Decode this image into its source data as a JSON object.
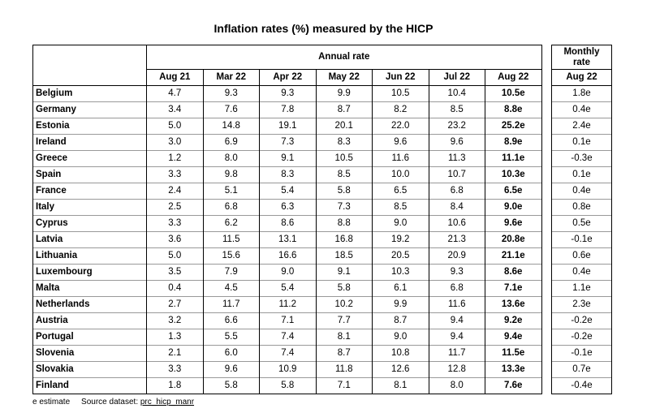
{
  "title": "Inflation rates (%) measured by the HICP",
  "annual_header": "Annual rate",
  "monthly_header_line1": "Monthly",
  "monthly_header_line2": "rate",
  "columns": [
    "Aug 21",
    "Mar 22",
    "Apr 22",
    "May 22",
    "Jun 22",
    "Jul 22",
    "Aug 22"
  ],
  "monthly_column": "Aug 22",
  "rows": [
    {
      "country": "Belgium",
      "values": [
        "4.7",
        "9.3",
        "9.3",
        "9.9",
        "10.5",
        "10.4",
        "10.5e"
      ],
      "monthly": "1.8e"
    },
    {
      "country": "Germany",
      "values": [
        "3.4",
        "7.6",
        "7.8",
        "8.7",
        "8.2",
        "8.5",
        "8.8e"
      ],
      "monthly": "0.4e"
    },
    {
      "country": "Estonia",
      "values": [
        "5.0",
        "14.8",
        "19.1",
        "20.1",
        "22.0",
        "23.2",
        "25.2e"
      ],
      "monthly": "2.4e"
    },
    {
      "country": "Ireland",
      "values": [
        "3.0",
        "6.9",
        "7.3",
        "8.3",
        "9.6",
        "9.6",
        "8.9e"
      ],
      "monthly": "0.1e"
    },
    {
      "country": "Greece",
      "values": [
        "1.2",
        "8.0",
        "9.1",
        "10.5",
        "11.6",
        "11.3",
        "11.1e"
      ],
      "monthly": "-0.3e"
    },
    {
      "country": "Spain",
      "values": [
        "3.3",
        "9.8",
        "8.3",
        "8.5",
        "10.0",
        "10.7",
        "10.3e"
      ],
      "monthly": "0.1e"
    },
    {
      "country": "France",
      "values": [
        "2.4",
        "5.1",
        "5.4",
        "5.8",
        "6.5",
        "6.8",
        "6.5e"
      ],
      "monthly": "0.4e"
    },
    {
      "country": "Italy",
      "values": [
        "2.5",
        "6.8",
        "6.3",
        "7.3",
        "8.5",
        "8.4",
        "9.0e"
      ],
      "monthly": "0.8e"
    },
    {
      "country": "Cyprus",
      "values": [
        "3.3",
        "6.2",
        "8.6",
        "8.8",
        "9.0",
        "10.6",
        "9.6e"
      ],
      "monthly": "0.5e"
    },
    {
      "country": "Latvia",
      "values": [
        "3.6",
        "11.5",
        "13.1",
        "16.8",
        "19.2",
        "21.3",
        "20.8e"
      ],
      "monthly": "-0.1e"
    },
    {
      "country": "Lithuania",
      "values": [
        "5.0",
        "15.6",
        "16.6",
        "18.5",
        "20.5",
        "20.9",
        "21.1e"
      ],
      "monthly": "0.6e"
    },
    {
      "country": "Luxembourg",
      "values": [
        "3.5",
        "7.9",
        "9.0",
        "9.1",
        "10.3",
        "9.3",
        "8.6e"
      ],
      "monthly": "0.4e"
    },
    {
      "country": "Malta",
      "values": [
        "0.4",
        "4.5",
        "5.4",
        "5.8",
        "6.1",
        "6.8",
        "7.1e"
      ],
      "monthly": "1.1e"
    },
    {
      "country": "Netherlands",
      "values": [
        "2.7",
        "11.7",
        "11.2",
        "10.2",
        "9.9",
        "11.6",
        "13.6e"
      ],
      "monthly": "2.3e"
    },
    {
      "country": "Austria",
      "values": [
        "3.2",
        "6.6",
        "7.1",
        "7.7",
        "8.7",
        "9.4",
        "9.2e"
      ],
      "monthly": "-0.2e"
    },
    {
      "country": "Portugal",
      "values": [
        "1.3",
        "5.5",
        "7.4",
        "8.1",
        "9.0",
        "9.4",
        "9.4e"
      ],
      "monthly": "-0.2e"
    },
    {
      "country": "Slovenia",
      "values": [
        "2.1",
        "6.0",
        "7.4",
        "8.7",
        "10.8",
        "11.7",
        "11.5e"
      ],
      "monthly": "-0.1e"
    },
    {
      "country": "Slovakia",
      "values": [
        "3.3",
        "9.6",
        "10.9",
        "11.8",
        "12.6",
        "12.8",
        "13.3e"
      ],
      "monthly": "0.7e"
    },
    {
      "country": "Finland",
      "values": [
        "1.8",
        "5.8",
        "5.8",
        "7.1",
        "8.1",
        "8.0",
        "7.6e"
      ],
      "monthly": "-0.4e"
    }
  ],
  "footer": {
    "estimate_note": "e estimate",
    "source_label": "Source dataset:",
    "source_link": "prc_hicp_manr"
  }
}
